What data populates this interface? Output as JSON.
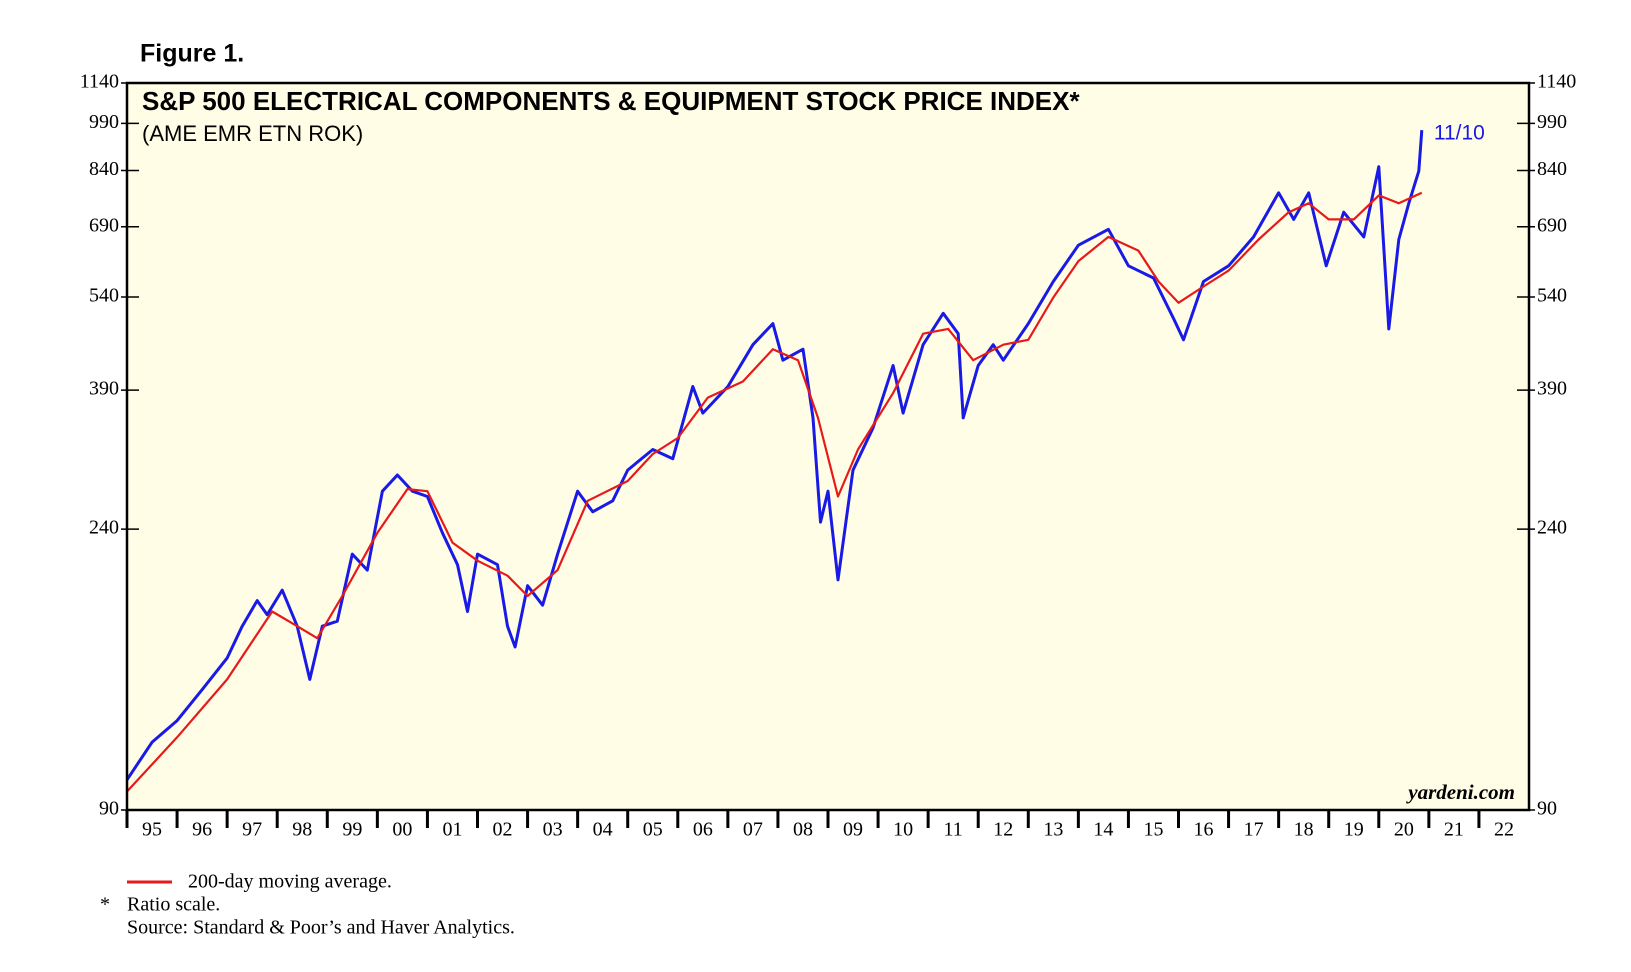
{
  "chart_data": {
    "type": "line",
    "figure_label": "Figure 1.",
    "title": "S&P 500 ELECTRICAL COMPONENTS & EQUIPMENT STOCK PRICE INDEX*",
    "subtitle": "(AME EMR ETN ROK)",
    "annotation": "11/10",
    "source_tag": "yardeni.com",
    "footnote_marker": "*",
    "notes": [
      "Ratio scale.",
      "Source: Standard & Poor’s and Haver Analytics."
    ],
    "log_scale": true,
    "background": "#fffde6",
    "ylim": [
      90,
      1140
    ],
    "yticks": [
      90,
      240,
      390,
      540,
      690,
      840,
      990,
      1140
    ],
    "xlim": [
      1995,
      2023
    ],
    "xticks": [
      {
        "value": 1995,
        "label": "95"
      },
      {
        "value": 1996,
        "label": "96"
      },
      {
        "value": 1997,
        "label": "97"
      },
      {
        "value": 1998,
        "label": "98"
      },
      {
        "value": 1999,
        "label": "99"
      },
      {
        "value": 2000,
        "label": "00"
      },
      {
        "value": 2001,
        "label": "01"
      },
      {
        "value": 2002,
        "label": "02"
      },
      {
        "value": 2003,
        "label": "03"
      },
      {
        "value": 2004,
        "label": "04"
      },
      {
        "value": 2005,
        "label": "05"
      },
      {
        "value": 2006,
        "label": "06"
      },
      {
        "value": 2007,
        "label": "07"
      },
      {
        "value": 2008,
        "label": "08"
      },
      {
        "value": 2009,
        "label": "09"
      },
      {
        "value": 2010,
        "label": "10"
      },
      {
        "value": 2011,
        "label": "11"
      },
      {
        "value": 2012,
        "label": "12"
      },
      {
        "value": 2013,
        "label": "13"
      },
      {
        "value": 2014,
        "label": "14"
      },
      {
        "value": 2015,
        "label": "15"
      },
      {
        "value": 2016,
        "label": "16"
      },
      {
        "value": 2017,
        "label": "17"
      },
      {
        "value": 2018,
        "label": "18"
      },
      {
        "value": 2019,
        "label": "19"
      },
      {
        "value": 2020,
        "label": "20"
      },
      {
        "value": 2021,
        "label": "21"
      },
      {
        "value": 2022,
        "label": "22"
      }
    ],
    "series": [
      {
        "color": "#1a1ae6",
        "x": [
          1995.0,
          1995.5,
          1996.0,
          1996.5,
          1997.0,
          1997.3,
          1997.6,
          1997.8,
          1998.1,
          1998.4,
          1998.65,
          1998.9,
          1999.2,
          1999.5,
          1999.8,
          2000.1,
          2000.4,
          2000.7,
          2001.0,
          2001.3,
          2001.6,
          2001.8,
          2002.0,
          2002.4,
          2002.6,
          2002.75,
          2003.0,
          2003.3,
          2003.6,
          2004.0,
          2004.3,
          2004.7,
          2005.0,
          2005.5,
          2005.9,
          2006.3,
          2006.5,
          2007.0,
          2007.5,
          2007.9,
          2008.1,
          2008.5,
          2008.7,
          2008.85,
          2009.0,
          2009.2,
          2009.5,
          2009.9,
          2010.3,
          2010.5,
          2010.9,
          2011.3,
          2011.6,
          2011.7,
          2012.0,
          2012.3,
          2012.5,
          2013.0,
          2013.5,
          2014.0,
          2014.6,
          2015.0,
          2015.5,
          2015.9,
          2016.1,
          2016.5,
          2017.0,
          2017.5,
          2018.0,
          2018.3,
          2018.6,
          2018.95,
          2019.3,
          2019.7,
          2020.0,
          2020.2,
          2020.4,
          2020.6,
          2020.8,
          2020.86
        ],
        "values": [
          100,
          114,
          123,
          137,
          153,
          171,
          187,
          178,
          194,
          171,
          142,
          171,
          174,
          220,
          208,
          274,
          290,
          274,
          269,
          237,
          212,
          180,
          220,
          212,
          171,
          159,
          197,
          184,
          220,
          274,
          255,
          265,
          295,
          317,
          307,
          395,
          360,
          395,
          457,
          492,
          433,
          450,
          354,
          246,
          274,
          201,
          295,
          342,
          425,
          360,
          457,
          510,
          475,
          354,
          425,
          457,
          433,
          492,
          570,
          647,
          684,
          602,
          577,
          501,
          465,
          570,
          602,
          666,
          777,
          708,
          777,
          602,
          726,
          666,
          851,
          483,
          660,
          749,
          838,
          967
        ]
      },
      {
        "name": "200-day moving average.",
        "color": "#e61a1a",
        "x": [
          1995.0,
          1996.0,
          1997.0,
          1997.9,
          1998.4,
          1998.8,
          1999.3,
          2000.0,
          2000.6,
          2001.0,
          2001.5,
          2002.0,
          2002.6,
          2003.0,
          2003.6,
          2004.2,
          2005.0,
          2005.5,
          2006.0,
          2006.6,
          2007.3,
          2007.9,
          2008.4,
          2008.8,
          2009.2,
          2009.6,
          2010.3,
          2010.9,
          2011.4,
          2011.9,
          2012.5,
          2013.0,
          2013.5,
          2014.0,
          2014.6,
          2015.2,
          2015.6,
          2016.0,
          2016.5,
          2017.0,
          2017.6,
          2018.2,
          2018.6,
          2019.0,
          2019.5,
          2020.0,
          2020.4,
          2020.86
        ],
        "values": [
          96,
          116,
          142,
          180,
          171,
          164,
          190,
          237,
          276,
          274,
          229,
          215,
          204,
          190,
          208,
          265,
          284,
          312,
          330,
          380,
          402,
          450,
          433,
          354,
          269,
          317,
          386,
          475,
          483,
          433,
          457,
          465,
          539,
          612,
          666,
          635,
          570,
          529,
          560,
          592,
          660,
          726,
          749,
          708,
          708,
          770,
          749,
          777
        ]
      }
    ]
  }
}
